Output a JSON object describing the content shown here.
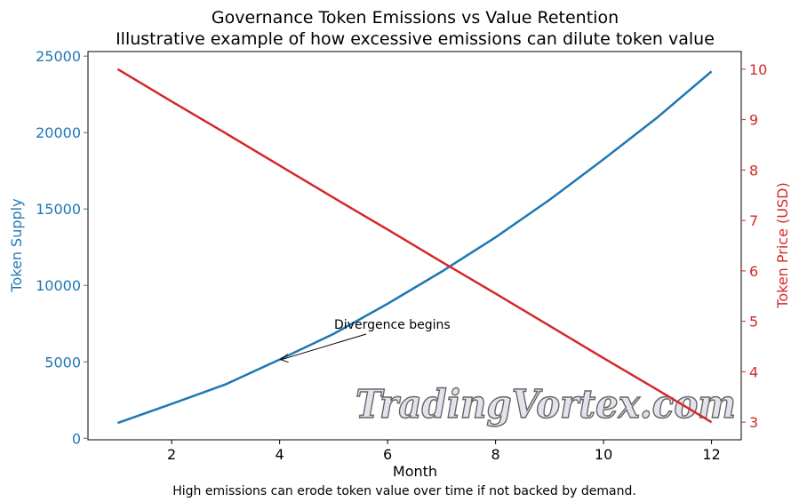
{
  "chart_data": {
    "type": "line",
    "title": "Governance Token Emissions vs Value Retention",
    "subtitle": "Illustrative example of how excessive emissions can dilute token value",
    "xlabel": "Month",
    "ylabel_left": "Token Supply",
    "ylabel_right": "Token Price (USD)",
    "x": [
      1,
      2,
      3,
      4,
      5,
      6,
      7,
      8,
      9,
      10,
      11,
      12
    ],
    "xticks": [
      2,
      4,
      6,
      8,
      10,
      12
    ],
    "xlim": [
      0.45,
      12.55
    ],
    "yticks_left": [
      0,
      5000,
      10000,
      15000,
      20000,
      25000
    ],
    "ylim_left": [
      -100,
      25300
    ],
    "yticks_right": [
      3,
      4,
      5,
      6,
      7,
      8,
      9,
      10
    ],
    "ylim_right": [
      2.65,
      10.35
    ],
    "series": [
      {
        "name": "Token Supply",
        "axis": "left",
        "color": "#1f77b4",
        "values": [
          1000,
          2250,
          3530,
          5150,
          6830,
          8800,
          10900,
          13150,
          15600,
          18250,
          21000,
          24000
        ]
      },
      {
        "name": "Token Price (USD)",
        "axis": "right",
        "color": "#d62728",
        "values": [
          10,
          9.36,
          8.73,
          8.09,
          7.45,
          6.82,
          6.18,
          5.55,
          4.91,
          4.27,
          3.64,
          3
        ]
      }
    ],
    "annotation": {
      "text": "Divergence begins",
      "x": 4,
      "y": 5150
    },
    "grid": false,
    "caption": "High emissions can erode token value over time if not backed by demand."
  },
  "watermark": "TradingVortex.com"
}
